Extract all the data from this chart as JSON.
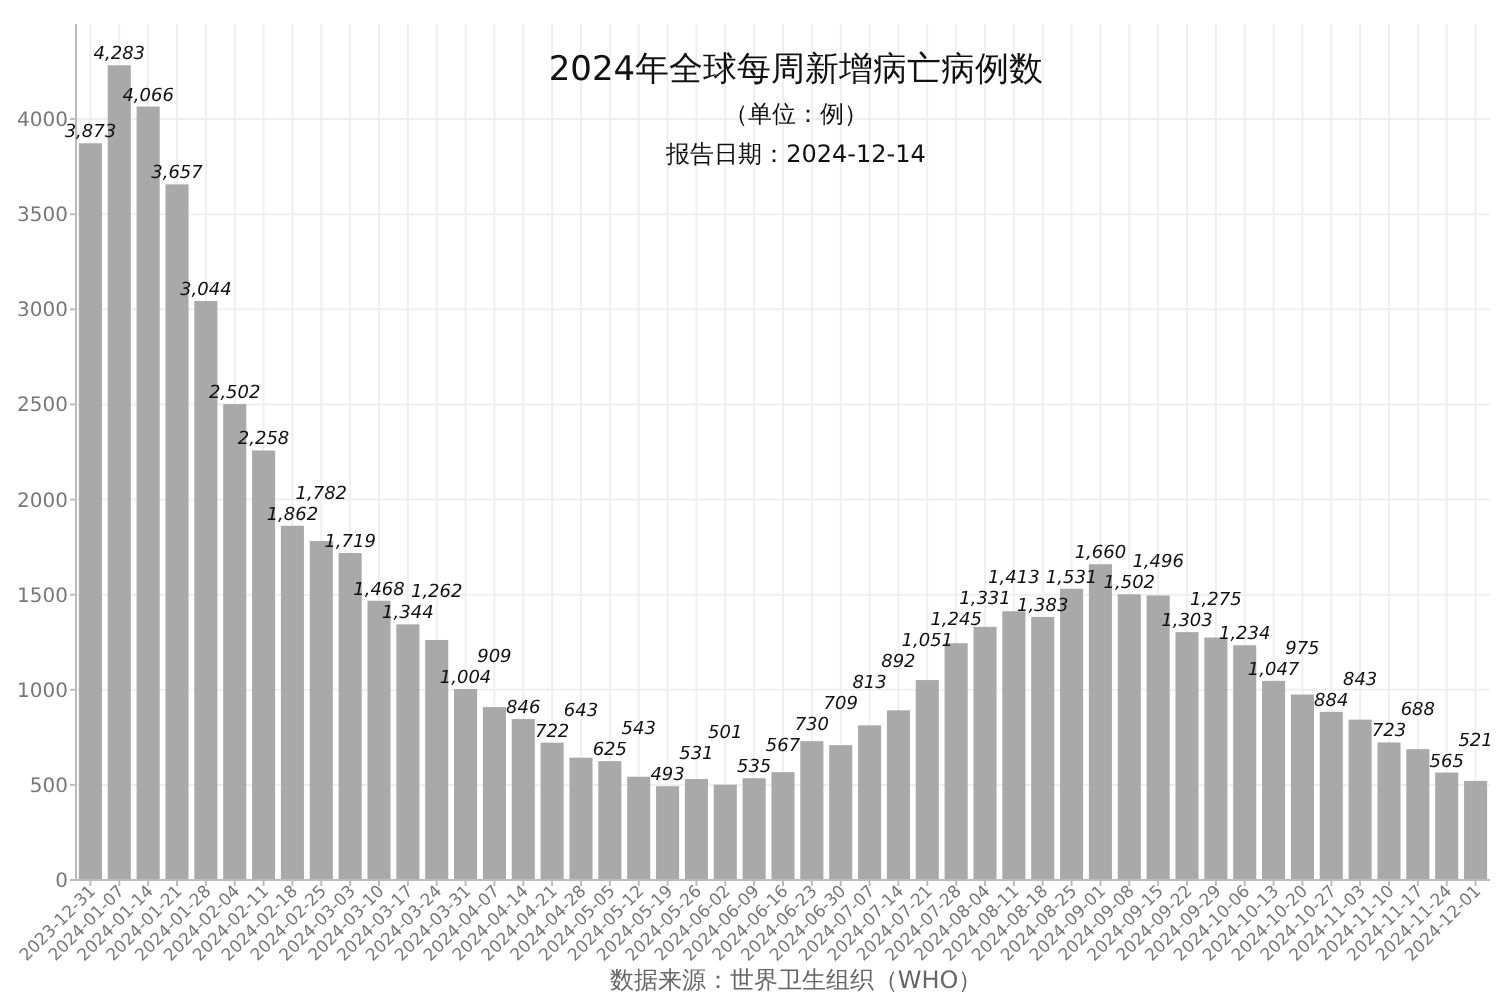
{
  "chart_data": {
    "type": "bar",
    "title": "2024年全球每周新增病亡病例数",
    "subtitle": "（单位：例）",
    "annotations": [
      "报告日期：2024-12-14",
      "数据来源：世界卫生组织（WHO）"
    ],
    "categories": [
      "2023-12-31",
      "2024-01-07",
      "2024-01-14",
      "2024-01-21",
      "2024-01-28",
      "2024-02-04",
      "2024-02-11",
      "2024-02-18",
      "2024-02-25",
      "2024-03-03",
      "2024-03-10",
      "2024-03-17",
      "2024-03-24",
      "2024-03-31",
      "2024-04-07",
      "2024-04-14",
      "2024-04-21",
      "2024-04-28",
      "2024-05-05",
      "2024-05-12",
      "2024-05-19",
      "2024-05-26",
      "2024-06-02",
      "2024-06-09",
      "2024-06-16",
      "2024-06-23",
      "2024-06-30",
      "2024-07-07",
      "2024-07-14",
      "2024-07-21",
      "2024-07-28",
      "2024-08-04",
      "2024-08-11",
      "2024-08-18",
      "2024-08-25",
      "2024-09-01",
      "2024-09-08",
      "2024-09-15",
      "2024-09-22",
      "2024-09-29",
      "2024-10-06",
      "2024-10-13",
      "2024-10-20",
      "2024-10-27",
      "2024-11-03",
      "2024-11-10",
      "2024-11-17",
      "2024-11-24",
      "2024-12-01"
    ],
    "values": [
      3873,
      4283,
      4066,
      3657,
      3044,
      2502,
      2258,
      1862,
      1782,
      1719,
      1468,
      1344,
      1262,
      1004,
      909,
      846,
      722,
      643,
      625,
      543,
      493,
      531,
      501,
      535,
      567,
      730,
      709,
      813,
      892,
      1051,
      1245,
      1331,
      1413,
      1383,
      1531,
      1660,
      1502,
      1496,
      1303,
      1275,
      1234,
      1047,
      975,
      884,
      843,
      723,
      688,
      565,
      521
    ],
    "value_labels": [
      "3,873",
      "4,283",
      "4,066",
      "3,657",
      "3,044",
      "2,502",
      "2,258",
      "1,862",
      "1,782",
      "1,719",
      "1,468",
      "1,344",
      "1,262",
      "1,004",
      "909",
      "846",
      "722",
      "643",
      "625",
      "543",
      "493",
      "531",
      "501",
      "535",
      "567",
      "730",
      "709",
      "813",
      "892",
      "1,051",
      "1,245",
      "1,331",
      "1,413",
      "1,383",
      "1,531",
      "1,660",
      "1,502",
      "1,496",
      "1,303",
      "1,275",
      "1,234",
      "1,047",
      "975",
      "884",
      "843",
      "723",
      "688",
      "565",
      "521"
    ],
    "color": "#a9a9a9",
    "ylim": [
      0,
      4500
    ],
    "yticks": [
      0,
      500,
      1000,
      1500,
      2000,
      2500,
      3000,
      3500,
      4000
    ],
    "grid": true
  }
}
